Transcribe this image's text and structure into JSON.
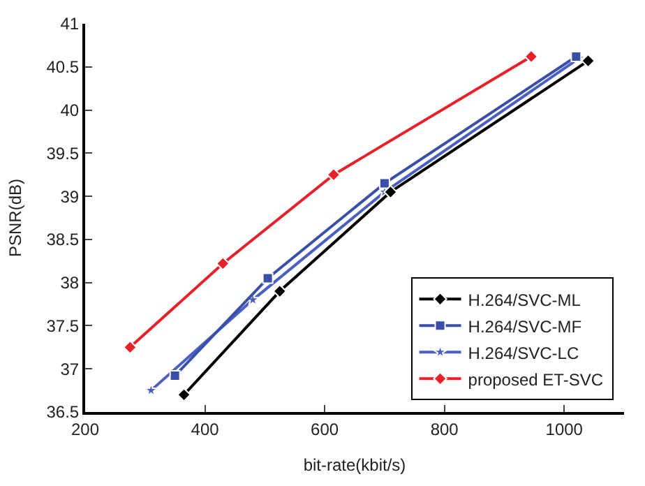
{
  "chart_data": {
    "type": "line",
    "xlabel": "bit-rate(kbit/s)",
    "ylabel": "PSNR(dB)",
    "xlim": [
      200,
      1100
    ],
    "ylim": [
      36.5,
      41
    ],
    "xticks": [
      200,
      400,
      600,
      800,
      1000
    ],
    "yticks": [
      36.5,
      37,
      37.5,
      38,
      38.5,
      39,
      39.5,
      40,
      40.5,
      41
    ],
    "legend": "bottom right",
    "series": [
      {
        "name": "H.264/SVC-ML",
        "color": "#000000",
        "marker": "diamond",
        "x": [
          365,
          525,
          710,
          1040
        ],
        "values": [
          36.7,
          37.9,
          39.05,
          40.57
        ]
      },
      {
        "name": "H.264/SVC-MF",
        "color": "#3a4fa8",
        "marker": "square",
        "x": [
          350,
          505,
          700,
          1020
        ],
        "values": [
          36.92,
          38.05,
          39.15,
          40.62
        ]
      },
      {
        "name": "H.264/SVC-LC",
        "color": "#4a5fc0",
        "marker": "star",
        "x": [
          310,
          480,
          700,
          1025
        ],
        "values": [
          36.75,
          37.8,
          39.05,
          40.6
        ]
      },
      {
        "name": "proposed ET-SVC",
        "color": "#e8202a",
        "marker": "diamond",
        "x": [
          275,
          430,
          615,
          945
        ],
        "values": [
          37.25,
          38.22,
          39.25,
          40.62
        ]
      }
    ]
  }
}
